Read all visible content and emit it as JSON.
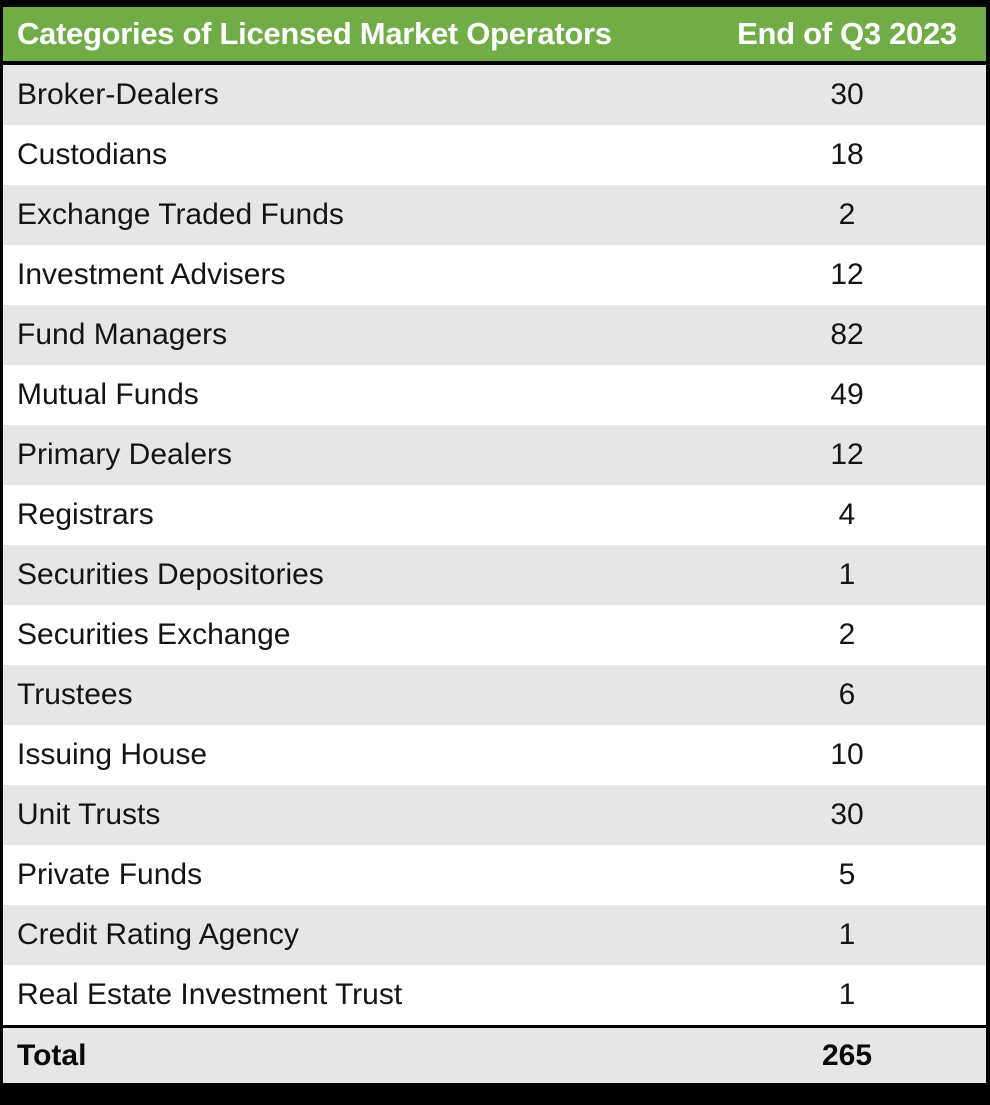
{
  "table": {
    "header": {
      "col1": "Categories of Licensed Market Operators",
      "col2": "End of Q3 2023"
    },
    "rows": [
      {
        "category": "Broker-Dealers",
        "value": "30"
      },
      {
        "category": "Custodians",
        "value": "18"
      },
      {
        "category": "Exchange Traded Funds",
        "value": "2"
      },
      {
        "category": "Investment Advisers",
        "value": "12"
      },
      {
        "category": "Fund Managers",
        "value": "82"
      },
      {
        "category": "Mutual Funds",
        "value": "49"
      },
      {
        "category": "Primary Dealers",
        "value": "12"
      },
      {
        "category": "Registrars",
        "value": "4"
      },
      {
        "category": "Securities Depositories",
        "value": "1"
      },
      {
        "category": "Securities Exchange",
        "value": "2"
      },
      {
        "category": "Trustees",
        "value": "6"
      },
      {
        "category": "Issuing House",
        "value": "10"
      },
      {
        "category": "Unit Trusts",
        "value": "30"
      },
      {
        "category": "Private Funds",
        "value": "5"
      },
      {
        "category": "Credit Rating Agency",
        "value": "1"
      },
      {
        "category": "Real Estate Investment Trust",
        "value": "1"
      }
    ],
    "total": {
      "label": "Total",
      "value": "265"
    }
  },
  "colors": {
    "header_bg": "#70AD47",
    "header_text": "#FFFFFF",
    "row_alt_bg": "#E7E6E6",
    "row_bg": "#FFFFFF",
    "border": "#000000",
    "body_text": "#141414"
  },
  "chart_data": {
    "type": "table",
    "title": "Categories of Licensed Market Operators",
    "columns": [
      "Categories of Licensed Market Operators",
      "End of Q3 2023"
    ],
    "categories": [
      "Broker-Dealers",
      "Custodians",
      "Exchange Traded Funds",
      "Investment Advisers",
      "Fund Managers",
      "Mutual Funds",
      "Primary Dealers",
      "Registrars",
      "Securities Depositories",
      "Securities Exchange",
      "Trustees",
      "Issuing House",
      "Unit Trusts",
      "Private Funds",
      "Credit Rating Agency",
      "Real Estate Investment Trust"
    ],
    "values": [
      30,
      18,
      2,
      12,
      82,
      49,
      12,
      4,
      1,
      2,
      6,
      10,
      30,
      5,
      1,
      1
    ],
    "total_label": "Total",
    "total": 265,
    "period": "End of Q3 2023",
    "layout": "alternating row shading, header green, total row bold"
  }
}
